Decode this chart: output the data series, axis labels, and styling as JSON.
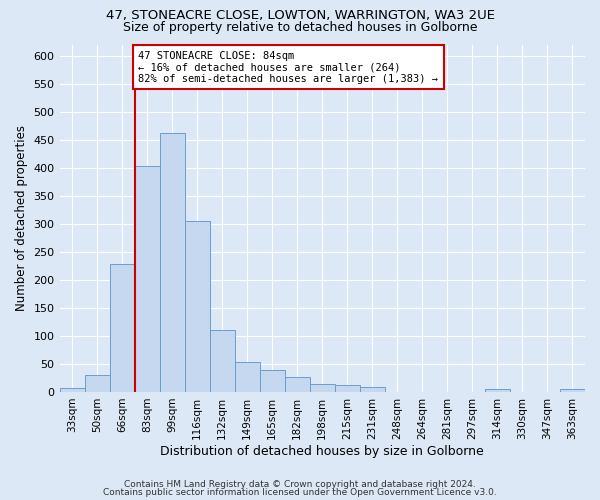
{
  "title_line1": "47, STONEACRE CLOSE, LOWTON, WARRINGTON, WA3 2UE",
  "title_line2": "Size of property relative to detached houses in Golborne",
  "xlabel": "Distribution of detached houses by size in Golborne",
  "ylabel": "Number of detached properties",
  "bin_labels": [
    "33sqm",
    "50sqm",
    "66sqm",
    "83sqm",
    "99sqm",
    "116sqm",
    "132sqm",
    "149sqm",
    "165sqm",
    "182sqm",
    "198sqm",
    "215sqm",
    "231sqm",
    "248sqm",
    "264sqm",
    "281sqm",
    "297sqm",
    "314sqm",
    "330sqm",
    "347sqm",
    "363sqm"
  ],
  "bar_heights": [
    7,
    30,
    228,
    403,
    463,
    305,
    110,
    53,
    40,
    26,
    14,
    12,
    8,
    0,
    0,
    0,
    0,
    5,
    0,
    0,
    5
  ],
  "bar_color": "#c5d8f0",
  "bar_edge_color": "#6a9fcb",
  "annotation_line1": "47 STONEACRE CLOSE: 84sqm",
  "annotation_line2": "← 16% of detached houses are smaller (264)",
  "annotation_line3": "82% of semi-detached houses are larger (1,383) →",
  "red_line_color": "#cc0000",
  "annotation_box_color": "#ffffff",
  "annotation_box_edge": "#cc0000",
  "ylim": [
    0,
    620
  ],
  "yticks": [
    0,
    50,
    100,
    150,
    200,
    250,
    300,
    350,
    400,
    450,
    500,
    550,
    600
  ],
  "footer_line1": "Contains HM Land Registry data © Crown copyright and database right 2024.",
  "footer_line2": "Contains public sector information licensed under the Open Government Licence v3.0.",
  "background_color": "#dce8f5",
  "plot_bg_color": "#dce8f5",
  "grid_color": "#ffffff",
  "title_fontsize": 9.5,
  "subtitle_fontsize": 9
}
